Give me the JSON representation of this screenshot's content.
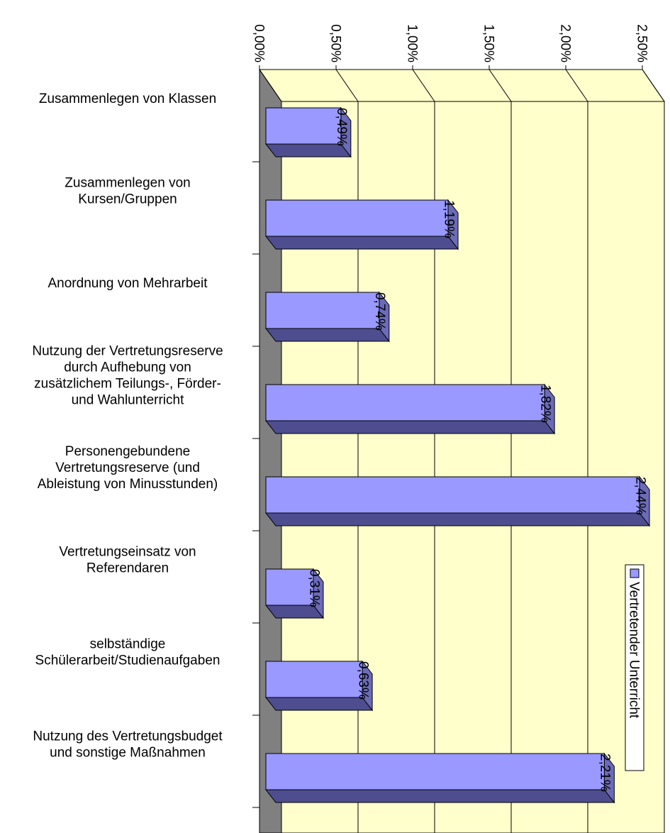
{
  "chart_data": {
    "type": "bar",
    "orientation": "horizontal",
    "categories": [
      "Zusammenlegen von Klassen",
      "Zusammenlegen von\nKursen/Gruppen",
      "Anordnung von Mehrarbeit",
      "Nutzung der Vertretungsreserve\ndurch Aufhebung von\nzusätzlichem Teilungs-, Förder-\nund Wahlunterricht",
      "Personengebundene\nVertretungsreserve (und\nAbleistung von Minusstunden)",
      "Vertretungseinsatz von\nReferendaren",
      "selbständige\nSchülerarbeit/Studienaufgaben",
      "Nutzung des Vertretungsbudget\nund sonstige Maßnahmen"
    ],
    "series": [
      {
        "name": "Vertretender Unterricht",
        "color": "#9999ff",
        "values": [
          0.49,
          1.19,
          0.74,
          1.82,
          2.44,
          0.31,
          0.63,
          2.21
        ],
        "value_labels": [
          "0,49%",
          "1,19%",
          "0,74%",
          "1,82%",
          "2,44%",
          "0,31%",
          "0,63%",
          "2,21%"
        ]
      }
    ],
    "xlim": [
      0,
      2.5
    ],
    "xticks": [
      {
        "value": 0,
        "label": "0,00%"
      },
      {
        "value": 0.5,
        "label": "0,50%"
      },
      {
        "value": 1,
        "label": "1,00%"
      },
      {
        "value": 1.5,
        "label": "1,50%"
      },
      {
        "value": 2,
        "label": "2,00%"
      },
      {
        "value": 2.5,
        "label": "2,50%"
      }
    ],
    "grid": true
  }
}
